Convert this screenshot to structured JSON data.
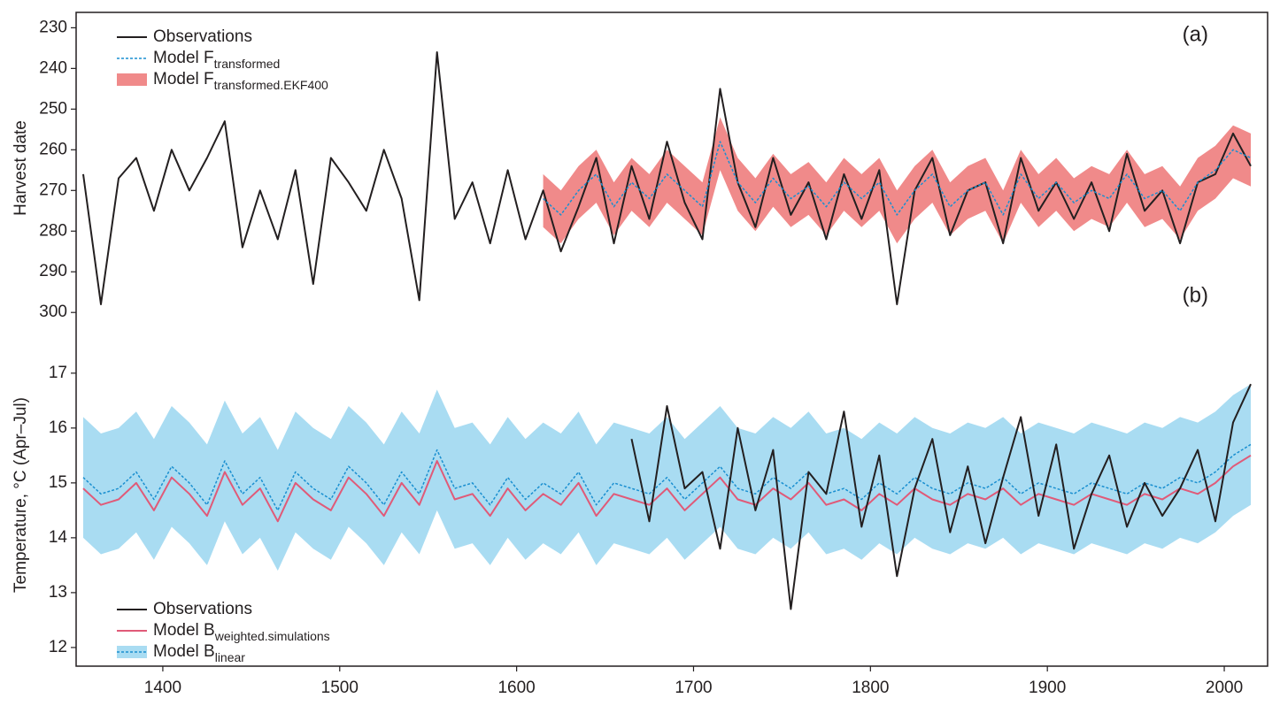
{
  "chart_data": [
    {
      "type": "line",
      "ylabel": "Harvest date",
      "annotation": "(a)",
      "legend": "upper left",
      "y_inverted": true,
      "xlim": [
        1351,
        2024.5
      ],
      "ylim": [
        226,
        303
      ],
      "yticks": [
        230,
        240,
        250,
        260,
        270,
        280,
        290,
        300
      ],
      "x": [
        1355,
        1365,
        1375,
        1385,
        1395,
        1405,
        1415,
        1425,
        1435,
        1445,
        1455,
        1465,
        1475,
        1485,
        1495,
        1505,
        1515,
        1525,
        1535,
        1545,
        1555,
        1565,
        1575,
        1585,
        1595,
        1605,
        1615,
        1625,
        1635,
        1645,
        1655,
        1665,
        1675,
        1685,
        1695,
        1705,
        1715,
        1725,
        1735,
        1745,
        1755,
        1765,
        1775,
        1785,
        1795,
        1805,
        1815,
        1825,
        1835,
        1845,
        1855,
        1865,
        1875,
        1885,
        1895,
        1905,
        1915,
        1925,
        1935,
        1945,
        1955,
        1965,
        1975,
        1985,
        1995,
        2005,
        2015
      ],
      "series": [
        {
          "name": "Observations",
          "color": "#231f20",
          "kind": "line",
          "values": [
            266,
            298,
            267,
            262,
            275,
            260,
            270,
            262,
            253,
            284,
            270,
            282,
            265,
            293,
            262,
            268,
            275,
            260,
            272,
            297,
            236,
            277,
            268,
            283,
            265,
            282,
            270,
            285,
            274,
            262,
            283,
            264,
            277,
            258,
            273,
            282,
            245,
            268,
            279,
            262,
            276,
            268,
            282,
            266,
            277,
            265,
            298,
            270,
            262,
            281,
            270,
            268,
            283,
            262,
            275,
            268,
            277,
            268,
            280,
            261,
            275,
            270,
            283,
            268,
            266,
            256,
            264
          ]
        },
        {
          "name": "Model F",
          "name_sub": "transformed",
          "color": "#1a8fd0",
          "kind": "line",
          "dash": true,
          "values": [
            null,
            null,
            null,
            null,
            null,
            null,
            null,
            null,
            null,
            null,
            null,
            null,
            null,
            null,
            null,
            null,
            null,
            null,
            null,
            null,
            null,
            null,
            null,
            null,
            null,
            null,
            272,
            276,
            270,
            266,
            274,
            268,
            272,
            266,
            270,
            274,
            258,
            268,
            273,
            267,
            272,
            269,
            274,
            268,
            272,
            268,
            276,
            270,
            266,
            274,
            270,
            268,
            276,
            266,
            272,
            268,
            273,
            270,
            272,
            266,
            272,
            270,
            275,
            268,
            265,
            260,
            262
          ]
        },
        {
          "name": "Model F",
          "name_sub": "transformed.EKF400",
          "color": "#f08a8a",
          "kind": "band",
          "lower": [
            null,
            null,
            null,
            null,
            null,
            null,
            null,
            null,
            null,
            null,
            null,
            null,
            null,
            null,
            null,
            null,
            null,
            null,
            null,
            null,
            null,
            null,
            null,
            null,
            null,
            null,
            266,
            270,
            264,
            260,
            268,
            262,
            266,
            260,
            264,
            268,
            252,
            262,
            267,
            261,
            266,
            263,
            268,
            262,
            266,
            262,
            270,
            264,
            260,
            268,
            264,
            262,
            270,
            260,
            266,
            262,
            267,
            264,
            266,
            260,
            266,
            264,
            269,
            262,
            259,
            254,
            256
          ],
          "upper": [
            null,
            null,
            null,
            null,
            null,
            null,
            null,
            null,
            null,
            null,
            null,
            null,
            null,
            null,
            null,
            null,
            null,
            null,
            null,
            null,
            null,
            null,
            null,
            null,
            null,
            null,
            279,
            283,
            277,
            273,
            281,
            275,
            279,
            273,
            277,
            281,
            265,
            275,
            280,
            274,
            279,
            276,
            281,
            275,
            279,
            275,
            283,
            277,
            273,
            281,
            277,
            275,
            283,
            273,
            279,
            275,
            280,
            277,
            279,
            273,
            279,
            277,
            282,
            275,
            272,
            267,
            269
          ]
        }
      ]
    },
    {
      "type": "line",
      "ylabel": "Temperature, °C (Apr–Jul)",
      "annotation": "(b)",
      "legend": "lower left",
      "y_inverted": false,
      "xlim": [
        1351,
        2024.5
      ],
      "ylim": [
        11.66,
        17.9
      ],
      "yticks": [
        12,
        13,
        14,
        15,
        16,
        17
      ],
      "xticks": [
        1400,
        1500,
        1600,
        1700,
        1800,
        1900,
        2000
      ],
      "x": [
        1355,
        1365,
        1375,
        1385,
        1395,
        1405,
        1415,
        1425,
        1435,
        1445,
        1455,
        1465,
        1475,
        1485,
        1495,
        1505,
        1515,
        1525,
        1535,
        1545,
        1555,
        1565,
        1575,
        1585,
        1595,
        1605,
        1615,
        1625,
        1635,
        1645,
        1655,
        1665,
        1675,
        1685,
        1695,
        1705,
        1715,
        1725,
        1735,
        1745,
        1755,
        1765,
        1775,
        1785,
        1795,
        1805,
        1815,
        1825,
        1835,
        1845,
        1855,
        1865,
        1875,
        1885,
        1895,
        1905,
        1915,
        1925,
        1935,
        1945,
        1955,
        1965,
        1975,
        1985,
        1995,
        2005,
        2015
      ],
      "series": [
        {
          "name": "Model B",
          "name_sub": "linear",
          "color": "#1a8fd0",
          "band_color": "#a9dcf2",
          "kind": "bandline",
          "dash": true,
          "values": [
            15.1,
            14.8,
            14.9,
            15.2,
            14.7,
            15.3,
            15.0,
            14.6,
            15.4,
            14.8,
            15.1,
            14.5,
            15.2,
            14.9,
            14.7,
            15.3,
            15.0,
            14.6,
            15.2,
            14.8,
            15.6,
            14.9,
            15.0,
            14.6,
            15.1,
            14.7,
            15.0,
            14.8,
            15.2,
            14.6,
            15.0,
            14.9,
            14.8,
            15.1,
            14.7,
            15.0,
            15.3,
            14.9,
            14.8,
            15.1,
            14.9,
            15.2,
            14.8,
            14.9,
            14.7,
            15.0,
            14.8,
            15.1,
            14.9,
            14.8,
            15.0,
            14.9,
            15.1,
            14.8,
            15.0,
            14.9,
            14.8,
            15.0,
            14.9,
            14.8,
            15.0,
            14.9,
            15.1,
            15.0,
            15.2,
            15.5,
            15.7
          ],
          "lower": [
            14.0,
            13.7,
            13.8,
            14.1,
            13.6,
            14.2,
            13.9,
            13.5,
            14.3,
            13.7,
            14.0,
            13.4,
            14.1,
            13.8,
            13.6,
            14.2,
            13.9,
            13.5,
            14.1,
            13.7,
            14.5,
            13.8,
            13.9,
            13.5,
            14.0,
            13.6,
            13.9,
            13.7,
            14.1,
            13.5,
            13.9,
            13.8,
            13.7,
            14.0,
            13.6,
            13.9,
            14.2,
            13.8,
            13.7,
            14.0,
            13.8,
            14.1,
            13.7,
            13.8,
            13.6,
            13.9,
            13.7,
            14.0,
            13.8,
            13.7,
            13.9,
            13.8,
            14.0,
            13.7,
            13.9,
            13.8,
            13.7,
            13.9,
            13.8,
            13.7,
            13.9,
            13.8,
            14.0,
            13.9,
            14.1,
            14.4,
            14.6
          ],
          "upper": [
            16.2,
            15.9,
            16.0,
            16.3,
            15.8,
            16.4,
            16.1,
            15.7,
            16.5,
            15.9,
            16.2,
            15.6,
            16.3,
            16.0,
            15.8,
            16.4,
            16.1,
            15.7,
            16.3,
            15.9,
            16.7,
            16.0,
            16.1,
            15.7,
            16.2,
            15.8,
            16.1,
            15.9,
            16.3,
            15.7,
            16.1,
            16.0,
            15.9,
            16.2,
            15.8,
            16.1,
            16.4,
            16.0,
            15.9,
            16.2,
            16.0,
            16.3,
            15.9,
            16.0,
            15.8,
            16.1,
            15.9,
            16.2,
            16.0,
            15.9,
            16.1,
            16.0,
            16.2,
            15.9,
            16.1,
            16.0,
            15.9,
            16.1,
            16.0,
            15.9,
            16.1,
            16.0,
            16.2,
            16.1,
            16.3,
            16.6,
            16.8
          ]
        },
        {
          "name": "Model B",
          "name_sub": "weighted.simulations",
          "color": "#e05a78",
          "kind": "line",
          "values": [
            14.9,
            14.6,
            14.7,
            15.0,
            14.5,
            15.1,
            14.8,
            14.4,
            15.2,
            14.6,
            14.9,
            14.3,
            15.0,
            14.7,
            14.5,
            15.1,
            14.8,
            14.4,
            15.0,
            14.6,
            15.4,
            14.7,
            14.8,
            14.4,
            14.9,
            14.5,
            14.8,
            14.6,
            15.0,
            14.4,
            14.8,
            14.7,
            14.6,
            14.9,
            14.5,
            14.8,
            15.1,
            14.7,
            14.6,
            14.9,
            14.7,
            15.0,
            14.6,
            14.7,
            14.5,
            14.8,
            14.6,
            14.9,
            14.7,
            14.6,
            14.8,
            14.7,
            14.9,
            14.6,
            14.8,
            14.7,
            14.6,
            14.8,
            14.7,
            14.6,
            14.8,
            14.7,
            14.9,
            14.8,
            15.0,
            15.3,
            15.5
          ]
        },
        {
          "name": "Observations",
          "color": "#231f20",
          "kind": "line",
          "values": [
            null,
            null,
            null,
            null,
            null,
            null,
            null,
            null,
            null,
            null,
            null,
            null,
            null,
            null,
            null,
            null,
            null,
            null,
            null,
            null,
            null,
            null,
            null,
            null,
            null,
            null,
            null,
            null,
            null,
            null,
            null,
            15.8,
            14.3,
            16.4,
            14.9,
            15.2,
            13.8,
            16.0,
            14.5,
            15.6,
            12.7,
            15.2,
            14.8,
            16.3,
            14.2,
            15.5,
            13.3,
            14.9,
            15.8,
            14.1,
            15.3,
            13.9,
            15.1,
            16.2,
            14.4,
            15.7,
            13.8,
            14.8,
            15.5,
            14.2,
            15.0,
            14.4,
            14.9,
            15.6,
            14.3,
            16.1,
            16.8
          ]
        }
      ]
    }
  ]
}
